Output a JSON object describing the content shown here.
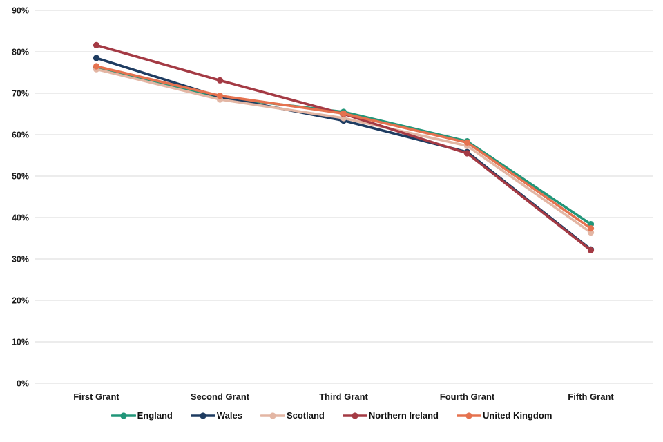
{
  "chart_data": {
    "type": "line",
    "title": "",
    "xlabel": "",
    "ylabel": "",
    "categories": [
      "First Grant",
      "Second Grant",
      "Third Grant",
      "Fourth Grant",
      "Fifth Grant"
    ],
    "series": [
      {
        "name": "England",
        "color": "#219679",
        "values": [
          76.2,
          69.0,
          65.5,
          58.4,
          38.4
        ]
      },
      {
        "name": "Wales",
        "color": "#1e3c61",
        "values": [
          78.5,
          69.1,
          63.4,
          55.8,
          32.3
        ]
      },
      {
        "name": "Scotland",
        "color": "#e3b6a4",
        "values": [
          75.8,
          68.5,
          64.0,
          57.3,
          36.4
        ]
      },
      {
        "name": "Northern Ireland",
        "color": "#a43a44",
        "values": [
          81.6,
          73.1,
          65.0,
          55.5,
          32.1
        ]
      },
      {
        "name": "United Kingdom",
        "color": "#e5724f",
        "values": [
          76.5,
          69.4,
          65.1,
          58.1,
          37.4
        ]
      }
    ],
    "yaxis": {
      "min": 0,
      "max": 90,
      "step": 10,
      "tick_format": "percent",
      "tick_labels": [
        "0%",
        "10%",
        "20%",
        "30%",
        "40%",
        "50%",
        "60%",
        "70%",
        "80%",
        "90%"
      ]
    },
    "grid": "horizontal",
    "gridline_color": "#d9d9d9",
    "legend_position": "bottom",
    "marker": "circle",
    "background_color": "#ffffff"
  }
}
